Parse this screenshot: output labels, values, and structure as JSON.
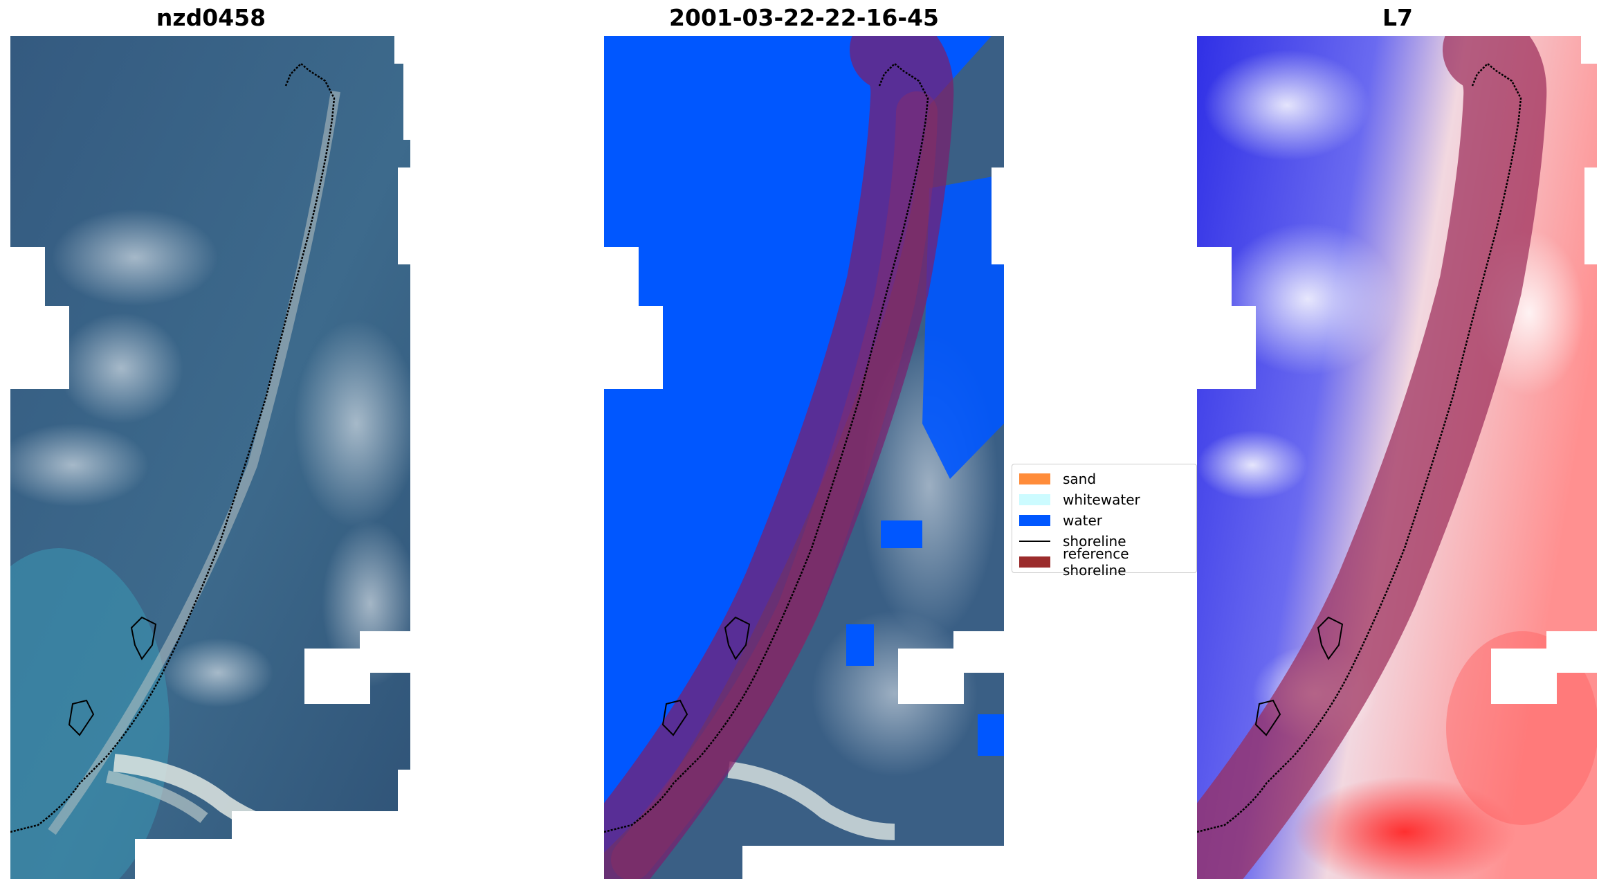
{
  "panels": [
    {
      "title": "nzd0458"
    },
    {
      "title": "2001-03-22-22-16-45"
    },
    {
      "title": "L7"
    }
  ],
  "legend": {
    "items": [
      {
        "label": "sand",
        "color": "#ff8c3a",
        "kind": "patch"
      },
      {
        "label": "whitewater",
        "color": "#ccfbff",
        "kind": "patch"
      },
      {
        "label": "water",
        "color": "#0057ff",
        "kind": "patch"
      },
      {
        "label": "shoreline",
        "color": "#000000",
        "kind": "line"
      },
      {
        "label": "reference shoreline",
        "color": "#9b2c2c",
        "kind": "patch"
      }
    ]
  },
  "colors": {
    "water_class": "#0057ff",
    "reference_shoreline": "#9b2c2c",
    "shoreline": "#000000",
    "satellite_sea": "#3a5f85",
    "index_low": "#2020e0",
    "index_high": "#ff3030"
  }
}
